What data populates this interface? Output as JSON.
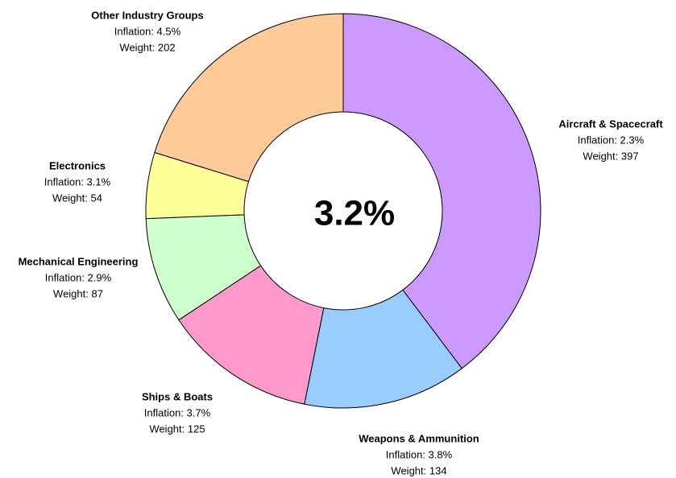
{
  "chart_data": {
    "type": "donut",
    "center_label": "3.2%",
    "categories": [
      "Aircraft & Spacecraft",
      "Weapons & Ammunition",
      "Ships & Boats",
      "Mechanical Engineering",
      "Electronics",
      "Other Industry Groups"
    ],
    "values": [
      397,
      134,
      125,
      87,
      54,
      202
    ],
    "value_labels": [
      "Weight: 397",
      "Weight: 134",
      "Weight: 125",
      "Weight: 87",
      "Weight: 54",
      "Weight: 202"
    ],
    "inflation": [
      2.3,
      3.8,
      3.7,
      2.9,
      3.1,
      4.5
    ],
    "inflation_labels": [
      "Inflation: 2.3%",
      "Inflation: 3.8%",
      "Inflation: 3.7%",
      "Inflation: 2.9%",
      "Inflation: 3.1%",
      "Inflation: 4.5%"
    ],
    "colors": [
      "#cc99ff",
      "#99ccff",
      "#ff99cc",
      "#ccffcc",
      "#ffff99",
      "#ffcc99"
    ]
  }
}
